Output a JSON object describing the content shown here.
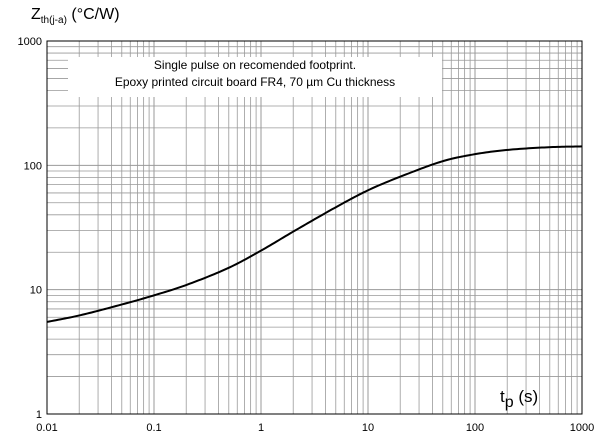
{
  "chart_data": {
    "type": "line",
    "ylabel": {
      "main": "Z",
      "sub": "th(j-a)",
      "unit": "(°C/W)"
    },
    "xlabel": {
      "main": "t",
      "sub": "p",
      "unit": "(s)"
    },
    "annotation": {
      "line1": "Single pulse on recomended footprint.",
      "line2": "Epoxy printed circuit board FR4, 70 µm Cu thickness"
    },
    "x_scale": "log",
    "y_scale": "log",
    "xlim": [
      0.01,
      1000
    ],
    "ylim": [
      1,
      1000
    ],
    "x_ticks": [
      "0.01",
      "0.1",
      "1",
      "10",
      "100",
      "1000"
    ],
    "y_ticks": [
      "1",
      "10",
      "100",
      "1000"
    ],
    "grid": true,
    "line_color": "#000000",
    "grid_color": "#999999",
    "series": [
      {
        "x": [
          0.01,
          0.02,
          0.05,
          0.1,
          0.2,
          0.5,
          1,
          2,
          5,
          10,
          20,
          50,
          100,
          200,
          500,
          1000
        ],
        "y": [
          5.5,
          6.2,
          7.6,
          9.0,
          10.9,
          15.0,
          20.6,
          29.3,
          46.0,
          63,
          81,
          108,
          123,
          133,
          140,
          142
        ]
      }
    ]
  }
}
